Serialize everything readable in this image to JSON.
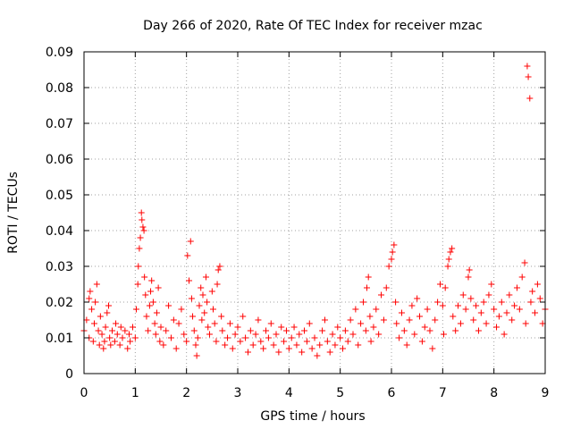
{
  "chart_data": {
    "type": "scatter",
    "title": "Day 266 of 2020, Rate Of TEC Index for receiver mzac",
    "xlabel": "GPS time / hours",
    "ylabel": "ROTI / TECUs",
    "xlim": [
      0,
      9
    ],
    "ylim": [
      0,
      0.09
    ],
    "xticks": [
      "0",
      "1",
      "2",
      "3",
      "4",
      "5",
      "6",
      "7",
      "8",
      "9"
    ],
    "yticks": [
      "0",
      "0.01",
      "0.02",
      "0.03",
      "0.04",
      "0.05",
      "0.06",
      "0.07",
      "0.08",
      "0.09"
    ],
    "grid": true,
    "marker": "+",
    "color": "#ff0000",
    "series": [
      {
        "name": "ROTI",
        "points": [
          [
            0.0,
            0.012
          ],
          [
            0.05,
            0.015
          ],
          [
            0.1,
            0.01
          ],
          [
            0.1,
            0.021
          ],
          [
            0.12,
            0.023
          ],
          [
            0.15,
            0.018
          ],
          [
            0.18,
            0.009
          ],
          [
            0.2,
            0.014
          ],
          [
            0.22,
            0.02
          ],
          [
            0.25,
            0.025
          ],
          [
            0.28,
            0.012
          ],
          [
            0.3,
            0.008
          ],
          [
            0.32,
            0.016
          ],
          [
            0.35,
            0.011
          ],
          [
            0.38,
            0.007
          ],
          [
            0.4,
            0.009
          ],
          [
            0.42,
            0.013
          ],
          [
            0.45,
            0.017
          ],
          [
            0.48,
            0.019
          ],
          [
            0.5,
            0.01
          ],
          [
            0.52,
            0.008
          ],
          [
            0.55,
            0.012
          ],
          [
            0.6,
            0.009
          ],
          [
            0.62,
            0.014
          ],
          [
            0.65,
            0.011
          ],
          [
            0.7,
            0.008
          ],
          [
            0.72,
            0.013
          ],
          [
            0.75,
            0.01
          ],
          [
            0.8,
            0.012
          ],
          [
            0.85,
            0.007
          ],
          [
            0.88,
            0.011
          ],
          [
            0.9,
            0.009
          ],
          [
            0.95,
            0.013
          ],
          [
            1.0,
            0.01
          ],
          [
            1.02,
            0.018
          ],
          [
            1.05,
            0.025
          ],
          [
            1.06,
            0.03
          ],
          [
            1.08,
            0.035
          ],
          [
            1.1,
            0.038
          ],
          [
            1.12,
            0.045
          ],
          [
            1.13,
            0.043
          ],
          [
            1.15,
            0.041
          ],
          [
            1.17,
            0.04
          ],
          [
            1.18,
            0.027
          ],
          [
            1.2,
            0.022
          ],
          [
            1.22,
            0.016
          ],
          [
            1.25,
            0.012
          ],
          [
            1.28,
            0.019
          ],
          [
            1.3,
            0.023
          ],
          [
            1.32,
            0.026
          ],
          [
            1.35,
            0.02
          ],
          [
            1.38,
            0.014
          ],
          [
            1.4,
            0.011
          ],
          [
            1.42,
            0.017
          ],
          [
            1.45,
            0.024
          ],
          [
            1.48,
            0.009
          ],
          [
            1.5,
            0.013
          ],
          [
            1.55,
            0.008
          ],
          [
            1.6,
            0.012
          ],
          [
            1.65,
            0.019
          ],
          [
            1.7,
            0.01
          ],
          [
            1.75,
            0.015
          ],
          [
            1.8,
            0.007
          ],
          [
            1.85,
            0.014
          ],
          [
            1.9,
            0.018
          ],
          [
            1.95,
            0.011
          ],
          [
            2.0,
            0.009
          ],
          [
            2.02,
            0.033
          ],
          [
            2.05,
            0.026
          ],
          [
            2.08,
            0.037
          ],
          [
            2.1,
            0.021
          ],
          [
            2.12,
            0.016
          ],
          [
            2.15,
            0.012
          ],
          [
            2.18,
            0.008
          ],
          [
            2.2,
            0.005
          ],
          [
            2.22,
            0.01
          ],
          [
            2.25,
            0.019
          ],
          [
            2.28,
            0.024
          ],
          [
            2.3,
            0.015
          ],
          [
            2.32,
            0.022
          ],
          [
            2.35,
            0.017
          ],
          [
            2.38,
            0.027
          ],
          [
            2.4,
            0.02
          ],
          [
            2.42,
            0.013
          ],
          [
            2.45,
            0.011
          ],
          [
            2.5,
            0.023
          ],
          [
            2.52,
            0.018
          ],
          [
            2.55,
            0.014
          ],
          [
            2.58,
            0.009
          ],
          [
            2.6,
            0.025
          ],
          [
            2.62,
            0.029
          ],
          [
            2.65,
            0.03
          ],
          [
            2.68,
            0.016
          ],
          [
            2.7,
            0.012
          ],
          [
            2.75,
            0.008
          ],
          [
            2.8,
            0.01
          ],
          [
            2.85,
            0.014
          ],
          [
            2.9,
            0.007
          ],
          [
            2.95,
            0.011
          ],
          [
            3.0,
            0.013
          ],
          [
            3.05,
            0.009
          ],
          [
            3.1,
            0.016
          ],
          [
            3.15,
            0.01
          ],
          [
            3.2,
            0.006
          ],
          [
            3.25,
            0.012
          ],
          [
            3.3,
            0.008
          ],
          [
            3.35,
            0.011
          ],
          [
            3.4,
            0.015
          ],
          [
            3.45,
            0.009
          ],
          [
            3.5,
            0.007
          ],
          [
            3.55,
            0.012
          ],
          [
            3.6,
            0.01
          ],
          [
            3.65,
            0.014
          ],
          [
            3.7,
            0.008
          ],
          [
            3.75,
            0.011
          ],
          [
            3.8,
            0.006
          ],
          [
            3.85,
            0.013
          ],
          [
            3.9,
            0.009
          ],
          [
            3.95,
            0.012
          ],
          [
            4.0,
            0.007
          ],
          [
            4.05,
            0.01
          ],
          [
            4.1,
            0.013
          ],
          [
            4.15,
            0.008
          ],
          [
            4.2,
            0.011
          ],
          [
            4.25,
            0.006
          ],
          [
            4.3,
            0.012
          ],
          [
            4.35,
            0.009
          ],
          [
            4.4,
            0.014
          ],
          [
            4.45,
            0.007
          ],
          [
            4.5,
            0.01
          ],
          [
            4.55,
            0.005
          ],
          [
            4.6,
            0.008
          ],
          [
            4.65,
            0.012
          ],
          [
            4.7,
            0.015
          ],
          [
            4.75,
            0.009
          ],
          [
            4.8,
            0.006
          ],
          [
            4.85,
            0.011
          ],
          [
            4.9,
            0.008
          ],
          [
            4.95,
            0.013
          ],
          [
            5.0,
            0.01
          ],
          [
            5.05,
            0.007
          ],
          [
            5.1,
            0.012
          ],
          [
            5.15,
            0.009
          ],
          [
            5.2,
            0.015
          ],
          [
            5.25,
            0.011
          ],
          [
            5.3,
            0.018
          ],
          [
            5.35,
            0.008
          ],
          [
            5.4,
            0.014
          ],
          [
            5.45,
            0.02
          ],
          [
            5.5,
            0.012
          ],
          [
            5.52,
            0.024
          ],
          [
            5.55,
            0.027
          ],
          [
            5.58,
            0.016
          ],
          [
            5.6,
            0.009
          ],
          [
            5.65,
            0.013
          ],
          [
            5.7,
            0.018
          ],
          [
            5.75,
            0.011
          ],
          [
            5.8,
            0.022
          ],
          [
            5.85,
            0.015
          ],
          [
            5.9,
            0.024
          ],
          [
            5.95,
            0.03
          ],
          [
            6.0,
            0.032
          ],
          [
            6.02,
            0.034
          ],
          [
            6.05,
            0.036
          ],
          [
            6.08,
            0.02
          ],
          [
            6.1,
            0.014
          ],
          [
            6.15,
            0.01
          ],
          [
            6.2,
            0.017
          ],
          [
            6.25,
            0.012
          ],
          [
            6.3,
            0.008
          ],
          [
            6.35,
            0.015
          ],
          [
            6.4,
            0.019
          ],
          [
            6.45,
            0.011
          ],
          [
            6.5,
            0.021
          ],
          [
            6.55,
            0.016
          ],
          [
            6.6,
            0.009
          ],
          [
            6.65,
            0.013
          ],
          [
            6.7,
            0.018
          ],
          [
            6.75,
            0.012
          ],
          [
            6.8,
            0.007
          ],
          [
            6.85,
            0.015
          ],
          [
            6.9,
            0.02
          ],
          [
            6.95,
            0.025
          ],
          [
            7.0,
            0.019
          ],
          [
            7.02,
            0.011
          ],
          [
            7.05,
            0.024
          ],
          [
            7.1,
            0.03
          ],
          [
            7.12,
            0.032
          ],
          [
            7.15,
            0.034
          ],
          [
            7.18,
            0.035
          ],
          [
            7.2,
            0.016
          ],
          [
            7.25,
            0.012
          ],
          [
            7.3,
            0.019
          ],
          [
            7.35,
            0.014
          ],
          [
            7.4,
            0.022
          ],
          [
            7.45,
            0.018
          ],
          [
            7.5,
            0.027
          ],
          [
            7.52,
            0.029
          ],
          [
            7.55,
            0.021
          ],
          [
            7.6,
            0.015
          ],
          [
            7.65,
            0.019
          ],
          [
            7.7,
            0.012
          ],
          [
            7.75,
            0.017
          ],
          [
            7.8,
            0.02
          ],
          [
            7.85,
            0.014
          ],
          [
            7.9,
            0.022
          ],
          [
            7.95,
            0.025
          ],
          [
            8.0,
            0.018
          ],
          [
            8.05,
            0.013
          ],
          [
            8.1,
            0.016
          ],
          [
            8.15,
            0.02
          ],
          [
            8.2,
            0.011
          ],
          [
            8.25,
            0.017
          ],
          [
            8.3,
            0.022
          ],
          [
            8.35,
            0.015
          ],
          [
            8.4,
            0.019
          ],
          [
            8.45,
            0.024
          ],
          [
            8.5,
            0.018
          ],
          [
            8.55,
            0.027
          ],
          [
            8.6,
            0.031
          ],
          [
            8.62,
            0.014
          ],
          [
            8.65,
            0.086
          ],
          [
            8.67,
            0.083
          ],
          [
            8.7,
            0.077
          ],
          [
            8.72,
            0.02
          ],
          [
            8.75,
            0.023
          ],
          [
            8.8,
            0.017
          ],
          [
            8.85,
            0.025
          ],
          [
            8.9,
            0.021
          ],
          [
            8.95,
            0.014
          ],
          [
            9.0,
            0.018
          ]
        ]
      }
    ]
  }
}
